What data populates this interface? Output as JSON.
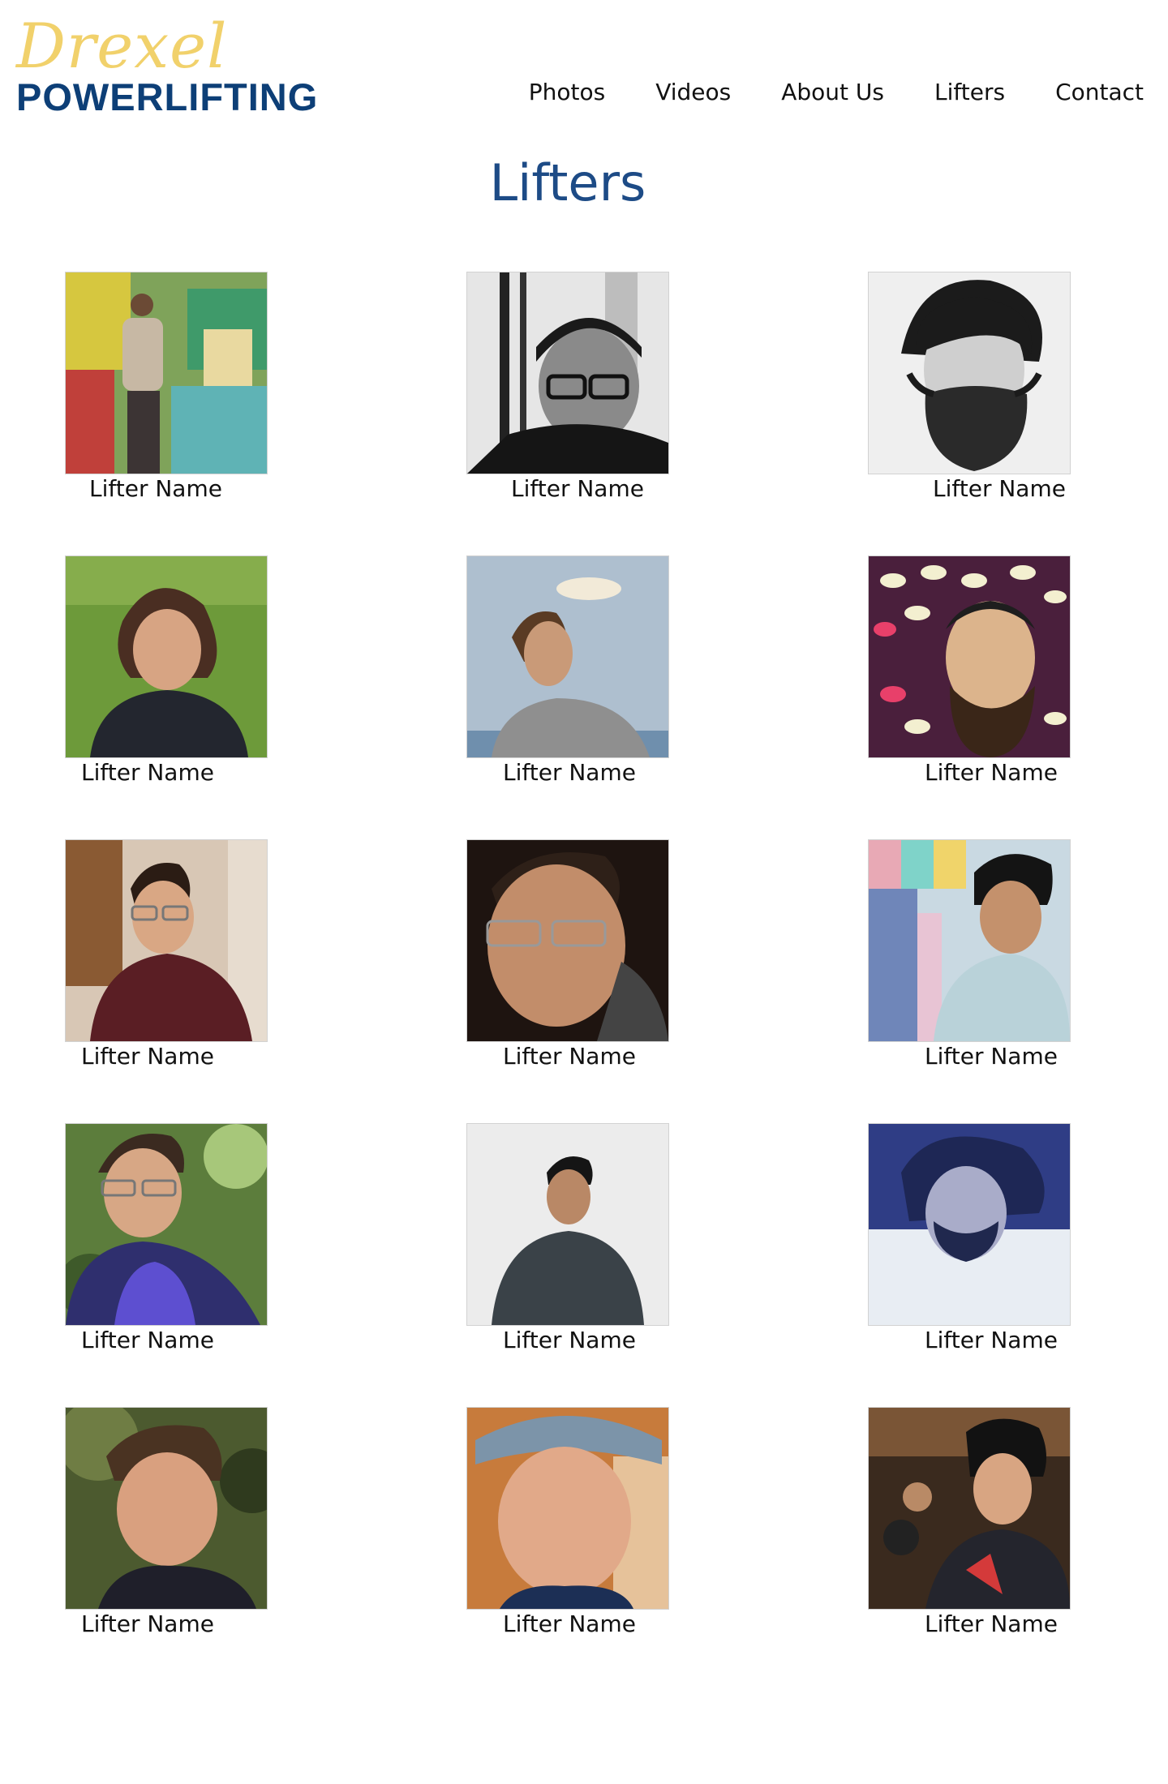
{
  "logo": {
    "script": "Drexel",
    "wordmark": "POWERLIFTING"
  },
  "nav": {
    "items": [
      {
        "label": "Photos"
      },
      {
        "label": "Videos"
      },
      {
        "label": "About Us"
      },
      {
        "label": "Lifters"
      },
      {
        "label": "Contact"
      }
    ]
  },
  "page": {
    "title": "Lifters"
  },
  "colors": {
    "logo_script": "#f1d16b",
    "logo_word": "#0d3f77",
    "title": "#1d4b86"
  },
  "lifters": [
    {
      "name": "Lifter Name",
      "photo": "man-in-hoodie-graffiti-wall"
    },
    {
      "name": "Lifter Name",
      "photo": "man-in-cap-glasses-bw"
    },
    {
      "name": "Lifter Name",
      "photo": "man-with-mustache-bw"
    },
    {
      "name": "Lifter Name",
      "photo": "woman-on-grass"
    },
    {
      "name": "Lifter Name",
      "photo": "man-at-beach"
    },
    {
      "name": "Lifter Name",
      "photo": "man-polka-dot-background"
    },
    {
      "name": "Lifter Name",
      "photo": "man-with-glasses-smiling-indoors"
    },
    {
      "name": "Lifter Name",
      "photo": "man-with-glasses-hand-on-chin"
    },
    {
      "name": "Lifter Name",
      "photo": "man-with-prayer-flags"
    },
    {
      "name": "Lifter Name",
      "photo": "man-with-glasses-in-forest"
    },
    {
      "name": "Lifter Name",
      "photo": "man-in-dark-shirt"
    },
    {
      "name": "Lifter Name",
      "photo": "man-blue-tinted"
    },
    {
      "name": "Lifter Name",
      "photo": "man-smiling-looking-down"
    },
    {
      "name": "Lifter Name",
      "photo": "man-in-hat-selfie"
    },
    {
      "name": "Lifter Name",
      "photo": "man-in-restaurant"
    }
  ]
}
